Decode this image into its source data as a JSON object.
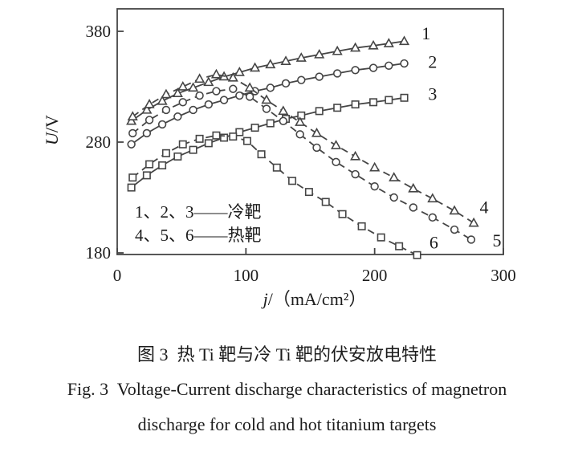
{
  "colors": {
    "line": "#454545",
    "text": "#1c1c1c",
    "background": "#ffffff"
  },
  "figure": {
    "caption_cn": "图 3  热 Ti 靶与冷 Ti 靶的伏安放电特性",
    "caption_en_line1": "Fig. 3  Voltage-Current discharge characteristics of magnetron",
    "caption_en_line2": "discharge for cold and hot titanium targets"
  },
  "chart_data": {
    "type": "line",
    "title": "",
    "xlabel_quantity": "j",
    "xlabel_unit": "/（mA/cm²）",
    "ylabel_quantity": "U",
    "ylabel_unit": "/V",
    "xlim": [
      0,
      300
    ],
    "ylim": [
      180,
      400
    ],
    "xticks": [
      0,
      100,
      200,
      300
    ],
    "yticks": [
      180,
      280,
      380
    ],
    "grid": false,
    "legend_lines": [
      "1、2、3——冷靶",
      "4、5、6——热靶"
    ],
    "series": [
      {
        "name": "1",
        "line": "solid",
        "marker": "triangle",
        "x": [
          11,
          23,
          35,
          47,
          59,
          71,
          83,
          95,
          107,
          119,
          131,
          143,
          157,
          171,
          185,
          199,
          211,
          223
        ],
        "u": [
          299,
          309,
          317,
          324,
          329,
          334,
          339,
          343,
          347,
          350,
          353,
          356,
          359,
          362,
          365,
          367,
          369,
          371
        ],
        "label": {
          "x": 240,
          "u": 378
        }
      },
      {
        "name": "2",
        "line": "solid",
        "marker": "circle",
        "x": [
          11,
          23,
          35,
          47,
          59,
          71,
          83,
          95,
          107,
          119,
          131,
          143,
          157,
          171,
          185,
          199,
          211,
          223
        ],
        "u": [
          278,
          288,
          296,
          303,
          309,
          314,
          318,
          322,
          326,
          329,
          333,
          336,
          339,
          342,
          345,
          347,
          349,
          351
        ],
        "label": {
          "x": 245,
          "u": 352
        }
      },
      {
        "name": "3",
        "line": "solid",
        "marker": "square",
        "x": [
          11,
          23,
          35,
          47,
          59,
          71,
          83,
          95,
          107,
          119,
          131,
          143,
          157,
          171,
          185,
          199,
          211,
          223
        ],
        "u": [
          239,
          250,
          259,
          267,
          273,
          279,
          284,
          289,
          293,
          297,
          301,
          304,
          308,
          311,
          314,
          316,
          318,
          320
        ],
        "label": {
          "x": 245,
          "u": 323
        }
      },
      {
        "name": "4",
        "line": "dashed",
        "marker": "triangle",
        "x": [
          12,
          25,
          38,
          51,
          64,
          77,
          90,
          103,
          116,
          129,
          142,
          155,
          170,
          185,
          200,
          215,
          230,
          245,
          262,
          277
        ],
        "u": [
          303,
          314,
          323,
          330,
          337,
          341,
          338,
          329,
          318,
          308,
          298,
          288,
          277,
          267,
          257,
          248,
          238,
          229,
          218,
          207
        ],
        "label": {
          "x": 285,
          "u": 221
        }
      },
      {
        "name": "5",
        "line": "dashed",
        "marker": "circle",
        "x": [
          12,
          25,
          38,
          51,
          64,
          77,
          90,
          103,
          116,
          129,
          142,
          155,
          170,
          185,
          200,
          215,
          230,
          245,
          262,
          275
        ],
        "u": [
          288,
          300,
          309,
          316,
          322,
          326,
          328,
          321,
          310,
          299,
          287,
          275,
          262,
          251,
          240,
          230,
          221,
          212,
          201,
          192
        ],
        "label": {
          "x": 295,
          "u": 191
        }
      },
      {
        "name": "6",
        "line": "dashed",
        "marker": "square",
        "x": [
          12,
          25,
          38,
          51,
          64,
          77,
          90,
          101,
          112,
          124,
          136,
          149,
          162,
          175,
          190,
          205,
          219,
          233
        ],
        "u": [
          248,
          260,
          270,
          278,
          283,
          286,
          285,
          281,
          269,
          257,
          245,
          235,
          226,
          215,
          204,
          194,
          186,
          178
        ],
        "label": {
          "x": 246,
          "u": 189
        }
      }
    ]
  }
}
